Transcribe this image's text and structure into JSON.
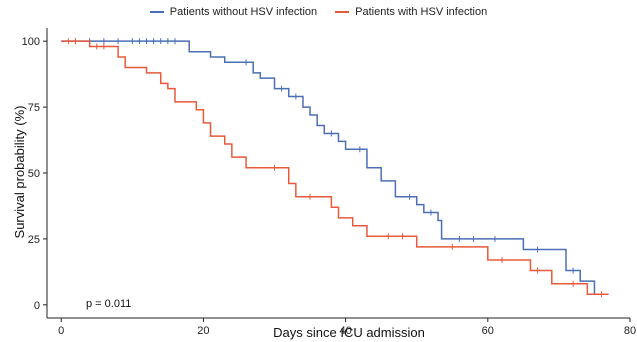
{
  "chart_data": {
    "type": "line",
    "subtype": "kaplan-meier step survival curve",
    "xlabel": "Days since ICU admission",
    "ylabel": "Survival probability (%)",
    "xlim": [
      -2,
      80
    ],
    "ylim": [
      -5,
      105
    ],
    "x_ticks": [
      0,
      20,
      40,
      60,
      80
    ],
    "y_ticks": [
      0,
      25,
      50,
      75,
      100
    ],
    "grid": false,
    "legend_position": "top",
    "annotation": "p = 0.011",
    "series": [
      {
        "name": "Patients without HSV infection",
        "color": "#4a6fb5",
        "steps": [
          [
            0,
            100
          ],
          [
            18,
            96
          ],
          [
            21,
            94
          ],
          [
            23,
            92
          ],
          [
            27,
            88
          ],
          [
            28,
            86
          ],
          [
            30,
            82
          ],
          [
            32,
            79
          ],
          [
            34,
            75
          ],
          [
            35,
            72
          ],
          [
            36,
            68
          ],
          [
            37,
            65
          ],
          [
            39,
            62
          ],
          [
            40,
            59
          ],
          [
            43,
            52
          ],
          [
            45,
            47
          ],
          [
            47,
            41
          ],
          [
            50,
            38
          ],
          [
            51,
            35
          ],
          [
            53,
            32
          ],
          [
            53.5,
            25
          ],
          [
            65,
            21
          ],
          [
            71,
            13
          ],
          [
            73,
            9
          ],
          [
            75,
            4
          ],
          [
            76,
            4
          ]
        ],
        "censored": [
          [
            2,
            100
          ],
          [
            4,
            100
          ],
          [
            6,
            100
          ],
          [
            8,
            100
          ],
          [
            10,
            100
          ],
          [
            11,
            100
          ],
          [
            12,
            100
          ],
          [
            13,
            100
          ],
          [
            14,
            100
          ],
          [
            15,
            100
          ],
          [
            16,
            100
          ],
          [
            26,
            92
          ],
          [
            31,
            82
          ],
          [
            33,
            79
          ],
          [
            38,
            65
          ],
          [
            42,
            59
          ],
          [
            49,
            41
          ],
          [
            52,
            35
          ],
          [
            56,
            25
          ],
          [
            58,
            25
          ],
          [
            61,
            25
          ],
          [
            67,
            21
          ],
          [
            72,
            13
          ]
        ]
      },
      {
        "name": "Patients with HSV infection",
        "color": "#e8593a",
        "steps": [
          [
            0,
            100
          ],
          [
            4,
            98
          ],
          [
            8,
            94
          ],
          [
            9,
            90
          ],
          [
            12,
            88
          ],
          [
            14,
            84
          ],
          [
            15,
            82
          ],
          [
            16,
            77
          ],
          [
            19,
            74
          ],
          [
            20,
            69
          ],
          [
            21,
            64
          ],
          [
            23,
            61
          ],
          [
            24,
            56
          ],
          [
            26,
            52
          ],
          [
            32,
            46
          ],
          [
            33,
            41
          ],
          [
            38,
            37
          ],
          [
            39,
            33
          ],
          [
            41,
            30
          ],
          [
            43,
            26
          ],
          [
            50,
            22
          ],
          [
            60,
            17
          ],
          [
            66,
            13
          ],
          [
            69,
            8
          ],
          [
            74,
            4
          ],
          [
            77,
            4
          ]
        ],
        "censored": [
          [
            1,
            100
          ],
          [
            2,
            100
          ],
          [
            5,
            98
          ],
          [
            6,
            98
          ],
          [
            30,
            52
          ],
          [
            35,
            41
          ],
          [
            46,
            26
          ],
          [
            48,
            26
          ],
          [
            55,
            22
          ],
          [
            62,
            17
          ],
          [
            67,
            13
          ],
          [
            72,
            8
          ],
          [
            76,
            4
          ]
        ]
      }
    ]
  }
}
